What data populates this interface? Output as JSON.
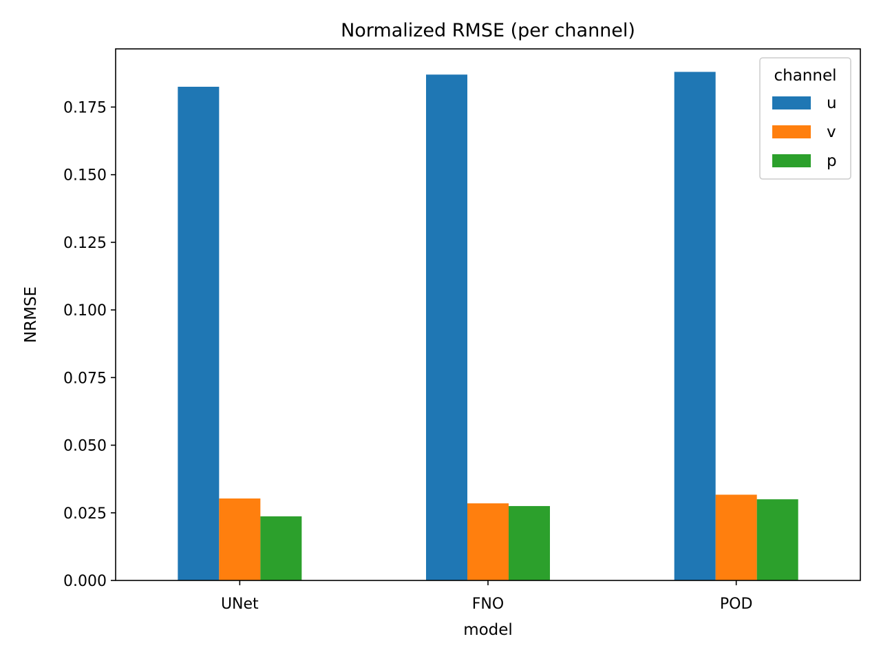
{
  "chart_data": {
    "type": "bar",
    "title": "Normalized RMSE (per channel)",
    "xlabel": "model",
    "ylabel": "NRMSE",
    "categories": [
      "UNet",
      "FNO",
      "POD"
    ],
    "ylim": [
      0,
      0.1965
    ],
    "yticks": [
      "0.000",
      "0.025",
      "0.050",
      "0.075",
      "0.100",
      "0.125",
      "0.150",
      "0.175"
    ],
    "grid": false,
    "legend": {
      "title": "channel",
      "placement": "top-right"
    },
    "series": [
      {
        "name": "u",
        "color": "#1f77b4",
        "values": [
          0.1825,
          0.187,
          0.188
        ]
      },
      {
        "name": "v",
        "color": "#ff7f0e",
        "values": [
          0.0303,
          0.0285,
          0.0317
        ]
      },
      {
        "name": "p",
        "color": "#2ca02c",
        "values": [
          0.0237,
          0.0275,
          0.03
        ]
      }
    ]
  }
}
